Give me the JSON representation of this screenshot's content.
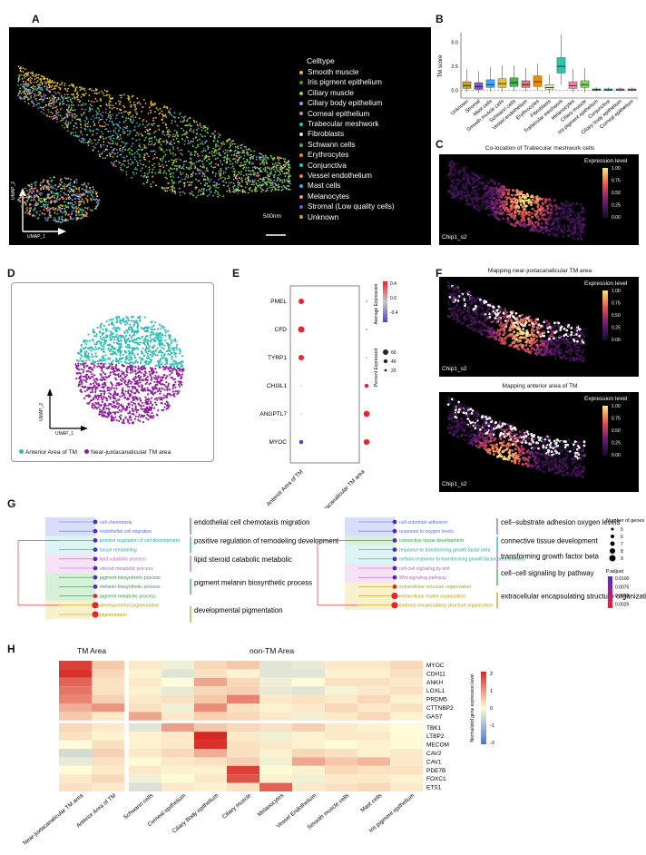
{
  "panels": {
    "a": "A",
    "b": "B",
    "c": "C",
    "d": "D",
    "e": "E",
    "f": "F",
    "g": "G",
    "h": "H"
  },
  "panel_a": {
    "legend_title": "Celltype",
    "scale_label": "500nm",
    "umap1": "UMAP_1",
    "umap2": "UMAP_2",
    "celltypes": [
      {
        "label": "Smooth muscle",
        "color": "#e6c229"
      },
      {
        "label": "Iris pigment epithelium",
        "color": "#2e9e44"
      },
      {
        "label": "Ciliary muscle",
        "color": "#7ed957"
      },
      {
        "label": "Ciliary body epithelium",
        "color": "#b48ee0"
      },
      {
        "label": "Corneal epithelium",
        "color": "#c97fd0"
      },
      {
        "label": "Trabecular meshwork",
        "color": "#2bc4b0"
      },
      {
        "label": "Fibroblasts",
        "color": "#e8e8a8"
      },
      {
        "label": "Schwann cells",
        "color": "#4caf50"
      },
      {
        "label": "Erythrocytes",
        "color": "#f08c00"
      },
      {
        "label": "Conjunctiva",
        "color": "#26c6da"
      },
      {
        "label": "Vessel endothelium",
        "color": "#e57373"
      },
      {
        "label": "Mast cells",
        "color": "#42a5f5"
      },
      {
        "label": "Melanocytes",
        "color": "#ff80ab"
      },
      {
        "label": "Stromal (Low quality cells)",
        "color": "#7e57c2"
      },
      {
        "label": "Unknown",
        "color": "#c9a227"
      }
    ]
  },
  "panel_b": {
    "ylabel": "TM score",
    "chart_data": {
      "type": "box",
      "ylabel": "TM score",
      "yticks": [
        "0.0",
        "2.5",
        "5.0"
      ],
      "ylim": [
        -0.8,
        6.0
      ],
      "categories": [
        "Unknown",
        "Stromal",
        "Mast cells",
        "Smooth muscle cells",
        "Schwann cells",
        "Vessel endothelium",
        "Erythrocytes",
        "Fibroblasts",
        "Trabecular meshwork",
        "Melanocytes",
        "Ciliary muscle",
        "Iris pigment epithelium",
        "Conjunctiva",
        "Ciliary body epithelium",
        "Corneal epithelium"
      ],
      "colors": [
        "#c9a227",
        "#7e57c2",
        "#42a5f5",
        "#e6c229",
        "#4caf50",
        "#e57373",
        "#f08c00",
        "#e8e8a8",
        "#2bc4b0",
        "#ff80ab",
        "#7ed957",
        "#2e9e44",
        "#26c6da",
        "#b48ee0",
        "#c97fd0"
      ],
      "q1": [
        0.2,
        0.1,
        0.3,
        0.3,
        0.4,
        0.3,
        0.4,
        0.1,
        1.8,
        0.2,
        0.3,
        0.0,
        0.0,
        0.0,
        0.0
      ],
      "median": [
        0.5,
        0.4,
        0.6,
        0.7,
        0.8,
        0.6,
        0.9,
        0.3,
        2.5,
        0.5,
        0.6,
        0.05,
        0.05,
        0.05,
        0.05
      ],
      "q3": [
        0.9,
        0.8,
        1.1,
        1.2,
        1.3,
        1.0,
        1.5,
        0.6,
        3.4,
        0.9,
        1.0,
        0.15,
        0.15,
        0.15,
        0.15
      ],
      "whisker_low": [
        -0.2,
        -0.3,
        -0.1,
        -0.2,
        -0.1,
        -0.1,
        0.0,
        -0.3,
        0.6,
        -0.2,
        -0.2,
        -0.1,
        -0.1,
        -0.1,
        -0.1
      ],
      "whisker_high": [
        2.2,
        2.0,
        2.4,
        2.6,
        2.6,
        2.3,
        2.8,
        1.6,
        5.8,
        2.2,
        2.3,
        0.3,
        0.3,
        0.3,
        0.3
      ]
    }
  },
  "panel_c": {
    "title": "Co-location of Trabecular meshwork cells",
    "legend_title": "Expression level",
    "ticks": [
      "1.00",
      "0.75",
      "0.50",
      "0.25",
      "0.00"
    ],
    "chip": "Chip1_s2"
  },
  "panel_d": {
    "umap1": "UMAP_1",
    "umap2": "UMAP_2",
    "legend": [
      {
        "label": "Anterior Area of TM",
        "color": "#2bbfb3"
      },
      {
        "label": "Near-juxtacanalicular TM area",
        "color": "#8e1f9b"
      }
    ]
  },
  "panel_e": {
    "genes": [
      "PMEL",
      "CFD",
      "TYRP1",
      "CHI3L1",
      "ANGPTL7",
      "MYOC"
    ],
    "groups": [
      "Anterior Area of TM",
      "Near-juxtacanalicular TM area"
    ],
    "chart_data": {
      "type": "dotplot",
      "rows": [
        "PMEL",
        "CFD",
        "TYRP1",
        "CHI3L1",
        "ANGPTL7",
        "MYOC"
      ],
      "cols": [
        "Anterior Area of TM",
        "Near-juxtacanalicular TM area"
      ],
      "pct_expressed": [
        [
          45,
          8
        ],
        [
          60,
          8
        ],
        [
          45,
          6
        ],
        [
          4,
          25
        ],
        [
          4,
          55
        ],
        [
          25,
          50
        ]
      ],
      "avg_expression": [
        [
          0.5,
          0.1
        ],
        [
          0.5,
          0.1
        ],
        [
          0.5,
          0.1
        ],
        [
          0.0,
          0.5
        ],
        [
          0.0,
          0.5
        ],
        [
          -0.5,
          0.5
        ]
      ]
    },
    "avg_title": "Average Expression",
    "avg_ticks": [
      "0.4",
      "0.0",
      "-0.4"
    ],
    "pct_title": "Percent Expressed",
    "pct_ticks": [
      "60",
      "40",
      "20"
    ]
  },
  "panel_f": {
    "title1": "Mapping near-juxtacanalicular TM area",
    "title2": "Mapping anterior area of TM",
    "legend_title": "Expression level",
    "ticks": [
      "1.00",
      "0.75",
      "0.50",
      "0.25",
      "0.00"
    ],
    "chip": "Chip1_s2"
  },
  "panel_g": {
    "left_terms": [
      {
        "label": "cell chemotaxis",
        "color": "#5b6ed6"
      },
      {
        "label": "endothelial cell migration",
        "color": "#5b6ed6"
      },
      {
        "label": "positive regulation of cell development",
        "color": "#22aaaa"
      },
      {
        "label": "tissue remodeling",
        "color": "#22aaaa"
      },
      {
        "label": "lipid catabolic process",
        "color": "#c05ec9"
      },
      {
        "label": "steroid metabolic process",
        "color": "#c05ec9"
      },
      {
        "label": "pigment biosynthetic process",
        "color": "#2e9e44"
      },
      {
        "label": "melanin biosynthetic process",
        "color": "#2e9e44"
      },
      {
        "label": "pigment metabolic process",
        "color": "#2e9e44"
      },
      {
        "label": "developmental pigmentation",
        "color": "#b8a000"
      },
      {
        "label": "pigmentation",
        "color": "#b8a000"
      }
    ],
    "left_summaries": [
      "endothelial cell chemotaxis migration",
      "positive regulation of remodeling development",
      "lipid steroid catabolic metabolic",
      "pigment melanin biosynthetic process",
      "developmental pigmentation"
    ],
    "right_terms": [
      {
        "label": "cell-substrate adhesion",
        "color": "#5b6ed6"
      },
      {
        "label": "response to oxygen levels",
        "color": "#5b6ed6"
      },
      {
        "label": "connective tissue development",
        "color": "#2e9e44"
      },
      {
        "label": "response to transforming growth factor beta",
        "color": "#22aaaa"
      },
      {
        "label": "cellular response to transforming growth factor beta stimulus",
        "color": "#22aaaa"
      },
      {
        "label": "cell-cell signaling by wnt",
        "color": "#c05ec9"
      },
      {
        "label": "Wnt signaling pathway",
        "color": "#c05ec9"
      },
      {
        "label": "extracellular structure organization",
        "color": "#b8a000"
      },
      {
        "label": "extracellular matrix organization",
        "color": "#b8a000"
      },
      {
        "label": "external encapsulating structure organization",
        "color": "#b8a000"
      }
    ],
    "right_summaries": [
      "cell−substrate adhesion oxygen levels",
      "connective tissue development",
      "transforming growth factor beta",
      "cell−cell signaling by pathway",
      "extracellular encapsulating structure organization"
    ],
    "number_title": "Number of genes",
    "number_ticks": [
      "5",
      "6",
      "7",
      "8",
      "9"
    ],
    "padj_title": "P.adjust",
    "padj_ticks": [
      "0.0100",
      "0.0075",
      "0.0050",
      "0.0025"
    ]
  },
  "panel_h": {
    "tm_header": "TM Area",
    "non_tm_header": "non-TM Area",
    "colorbar_title": "Normalized gene expression level",
    "colorbar_ticks": [
      "2",
      "1",
      "0",
      "-1",
      "-2"
    ],
    "chart_data": {
      "type": "heatmap",
      "rows": [
        "MYOC",
        "CDH11",
        "ANKH",
        "LOXL1",
        "PRDM5",
        "CTTNBP2",
        "GAS7",
        "TBK1",
        "LTBP2",
        "MECOM",
        "CAV2",
        "CAV1",
        "PDE7B",
        "FOXC1",
        "ETS1"
      ],
      "cols": [
        "Near-juxtacanalicular TM area",
        "Anterior Area of TM",
        "Schwann cells",
        "Corneal epithelium",
        "Ciliary Body epithelium",
        "Ciliary muscle",
        "Melanocytes",
        "Vessel Endothelium",
        "Smooth muscle cells",
        "Mast cells",
        "Iris pigment epithelium"
      ],
      "values": [
        [
          2.2,
          0.6,
          0.2,
          -0.2,
          0.4,
          0.6,
          -0.4,
          -0.3,
          0.2,
          0.2,
          0.4
        ],
        [
          2.4,
          0.4,
          0.1,
          -0.4,
          0.3,
          0.1,
          -0.4,
          -0.4,
          0.1,
          0.1,
          0.3
        ],
        [
          1.8,
          0.3,
          0.2,
          0.0,
          1.0,
          0.4,
          -0.2,
          0.0,
          0.3,
          0.3,
          0.2
        ],
        [
          1.6,
          0.3,
          0.1,
          -0.3,
          0.4,
          0.5,
          -0.3,
          -0.4,
          -0.1,
          0.2,
          0.3
        ],
        [
          1.4,
          0.5,
          0.2,
          0.3,
          0.6,
          1.4,
          0.2,
          0.3,
          0.2,
          0.4,
          0.1
        ],
        [
          0.9,
          1.2,
          0.3,
          -0.2,
          1.3,
          0.3,
          0.1,
          0.2,
          0.4,
          0.2,
          0.3
        ],
        [
          0.6,
          0.2,
          1.0,
          0.2,
          0.5,
          0.4,
          0.2,
          -0.2,
          0.2,
          0.4,
          0.1
        ],
        [
          0.4,
          0.2,
          -0.4,
          1.1,
          0.6,
          0.4,
          0.3,
          0.5,
          0.2,
          0.1,
          0.0
        ],
        [
          0.3,
          0.1,
          0.1,
          0.2,
          2.6,
          0.2,
          -0.2,
          0.1,
          0.2,
          0.2,
          0.0
        ],
        [
          0.0,
          0.3,
          0.1,
          0.2,
          2.4,
          0.3,
          0.2,
          0.1,
          0.0,
          0.1,
          0.0
        ],
        [
          -0.6,
          0.5,
          0.2,
          0.4,
          0.9,
          0.3,
          0.1,
          0.4,
          0.3,
          0.1,
          0.2
        ],
        [
          -0.3,
          0.3,
          0.0,
          0.2,
          0.3,
          0.5,
          -0.2,
          1.0,
          0.6,
          0.8,
          0.2
        ],
        [
          0.0,
          0.2,
          0.2,
          0.1,
          0.1,
          2.2,
          0.0,
          0.1,
          0.4,
          0.3,
          0.3
        ],
        [
          0.2,
          0.4,
          -0.2,
          0.0,
          0.2,
          2.0,
          0.1,
          -0.2,
          0.2,
          0.2,
          0.1
        ],
        [
          0.3,
          0.2,
          -0.5,
          0.2,
          0.1,
          0.3,
          1.8,
          0.2,
          0.3,
          0.4,
          0.2
        ]
      ]
    }
  }
}
